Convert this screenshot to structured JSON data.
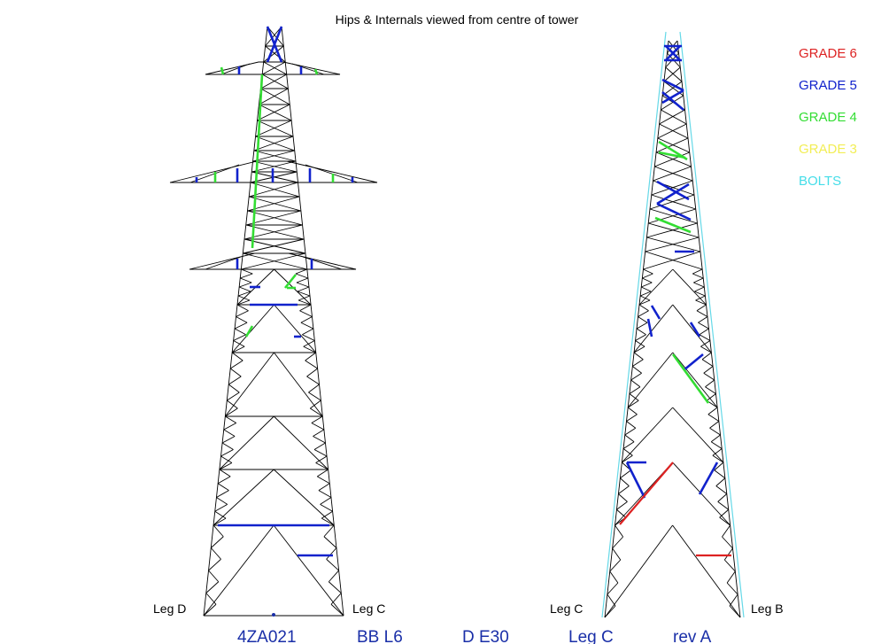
{
  "title": "Hips & Internals viewed from centre of tower",
  "legend": [
    {
      "label": "GRADE 6",
      "color": "#dd2222"
    },
    {
      "label": "GRADE 5",
      "color": "#1122cc"
    },
    {
      "label": "GRADE 4",
      "color": "#33dd33"
    },
    {
      "label": "GRADE 3",
      "color": "#f2ee55"
    },
    {
      "label": "BOLTS",
      "color": "#44dde8"
    }
  ],
  "left_tower": {
    "leg_left": "Leg D",
    "leg_right": "Leg C"
  },
  "right_tower": {
    "leg_left": "Leg C",
    "leg_right": "Leg B"
  },
  "footer": {
    "tower_id": "4ZA021",
    "line": "BB L6",
    "extension": "D E30",
    "leg": "Leg C",
    "revision": "rev A"
  }
}
